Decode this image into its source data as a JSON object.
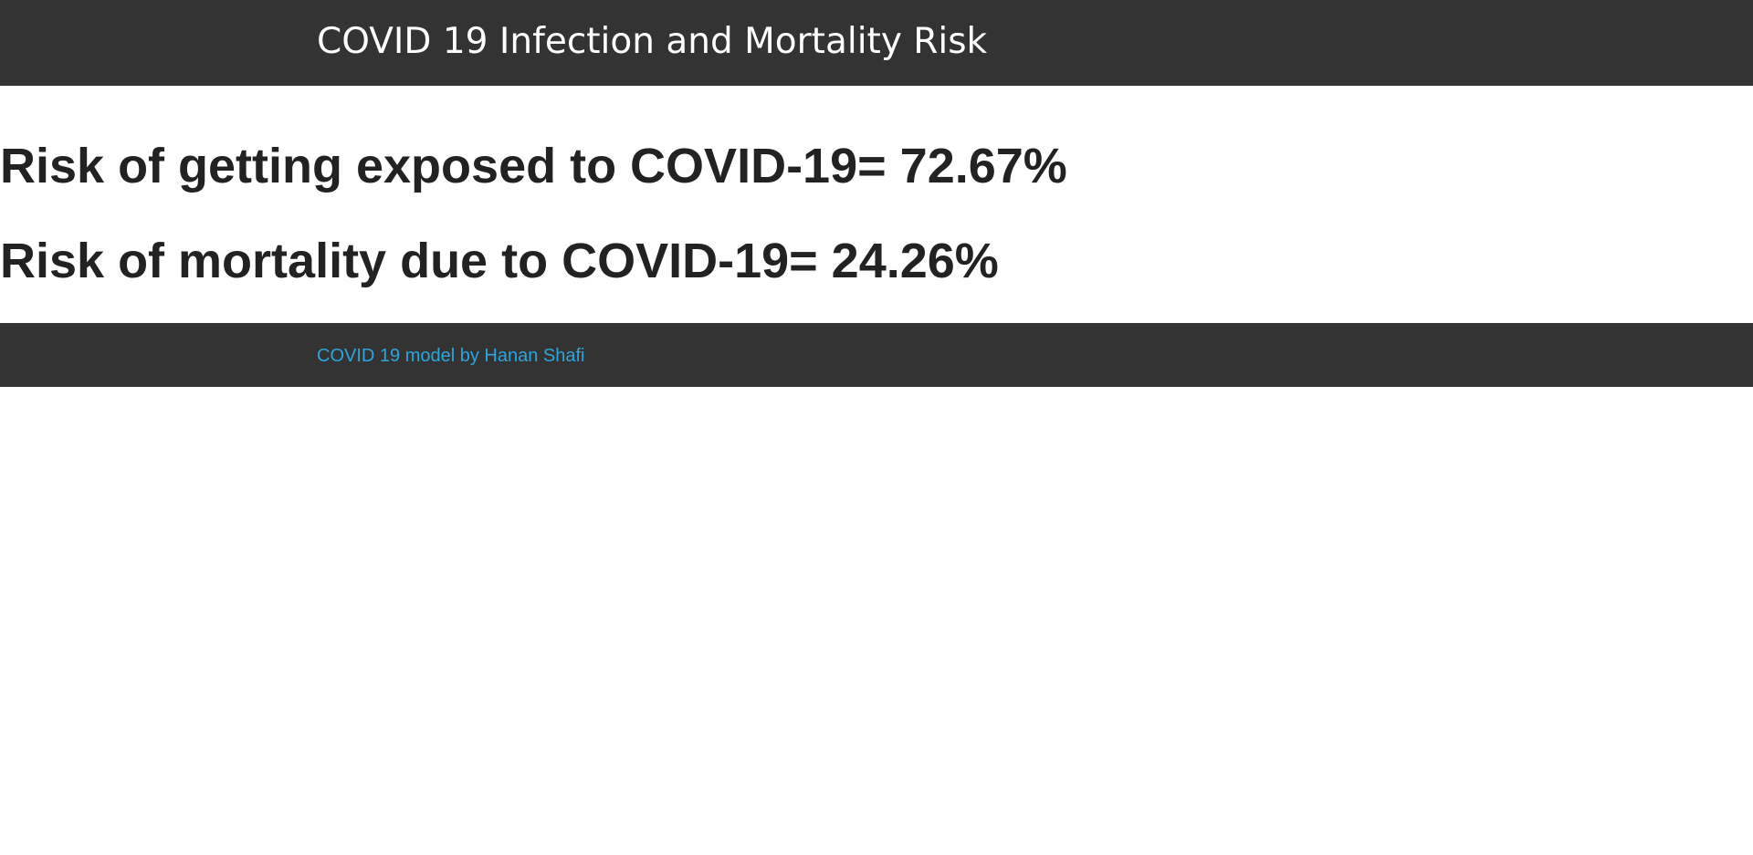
{
  "header": {
    "title": "COVID 19 Infection and Mortality Risk"
  },
  "results": {
    "exposure": "Risk of getting exposed to COVID-19= 72.67%",
    "mortality": "Risk of mortality due to COVID-19= 24.26%"
  },
  "footer": {
    "credit": "COVID 19 model by Hanan Shafi"
  },
  "colors": {
    "bar_background": "#333333",
    "link": "#2ba6de",
    "body_text": "#222222"
  }
}
